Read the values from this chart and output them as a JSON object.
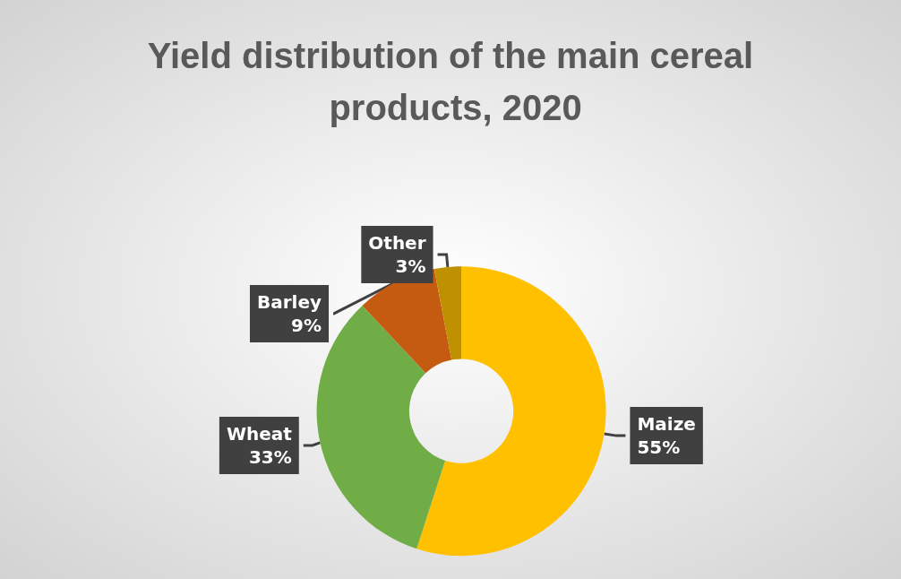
{
  "chart_data": {
    "type": "donut",
    "title": "Yield distribution of the main cereal products, 2020",
    "categories": [
      "Maize",
      "Wheat",
      "Barley",
      "Other"
    ],
    "values": [
      55,
      33,
      9,
      3
    ],
    "value_labels": [
      "55%",
      "33%",
      "9%",
      "3%"
    ],
    "colors": [
      "#ffc000",
      "#70ad47",
      "#c55a11",
      "#bf9000"
    ],
    "legend": false
  }
}
